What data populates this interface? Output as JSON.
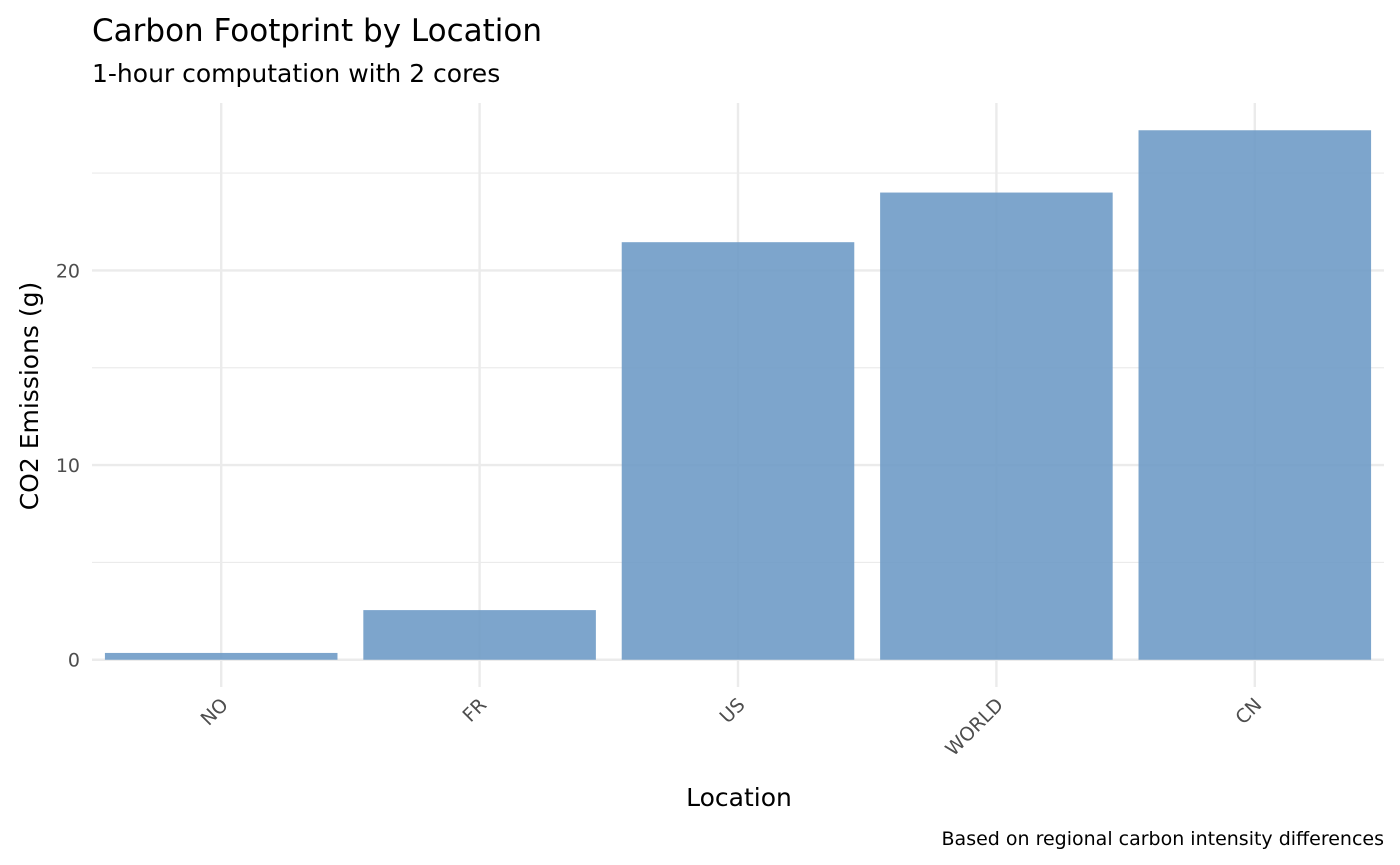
{
  "chart_data": {
    "type": "bar",
    "title": "Carbon Footprint by Location",
    "subtitle": "1-hour computation with 2 cores",
    "xlabel": "Location",
    "ylabel": "CO2 Emissions (g)",
    "caption": "Based on regional carbon intensity differences",
    "categories": [
      "NO",
      "FR",
      "US",
      "WORLD",
      "CN"
    ],
    "values": [
      0.35,
      2.55,
      21.45,
      24.0,
      27.2
    ],
    "ylim": [
      -1.4,
      28.6
    ],
    "yticks": [
      0,
      10,
      20
    ],
    "ytick_labels": [
      "0",
      "10",
      "20"
    ],
    "grid": true,
    "bar_color": "#6f9bc6",
    "grid_color": "#ebebeb",
    "tick_label_color": "#4d4d4d"
  }
}
